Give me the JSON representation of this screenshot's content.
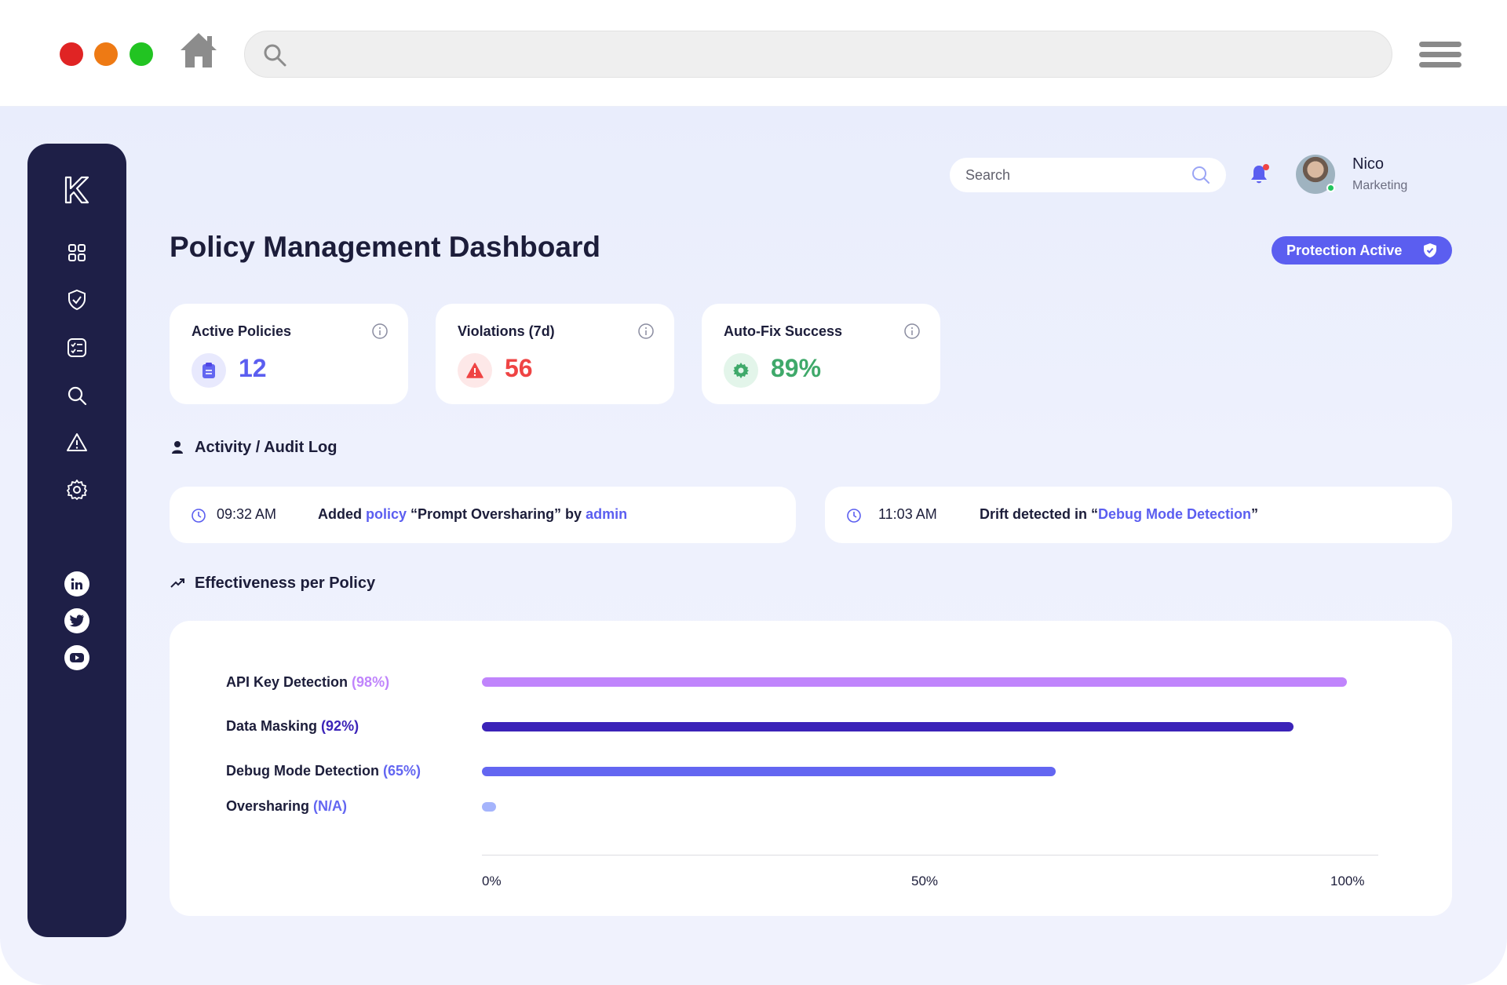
{
  "browser": {
    "url_placeholder": ""
  },
  "topbar": {
    "search_placeholder": "Search",
    "user_name": "Nico",
    "user_role": "Marketing"
  },
  "page": {
    "title": "Policy Management Dashboard",
    "status_badge": "Protection Active"
  },
  "stats": [
    {
      "title": "Active Policies",
      "value": "12",
      "icon": "clipboard-icon",
      "color": "#5b5ef0"
    },
    {
      "title": "Violations (7d)",
      "value": "56",
      "icon": "warning-icon",
      "color": "#ef4444"
    },
    {
      "title": "Auto-Fix Success",
      "value": "89%",
      "icon": "gear-icon",
      "color": "#3fa96a"
    }
  ],
  "activity": {
    "title": "Activity / Audit Log",
    "entries": [
      {
        "time": "09:32 AM",
        "pre": "Added ",
        "link1": "policy",
        "mid": " “Prompt Oversharing” by ",
        "link2": "admin",
        "post": ""
      },
      {
        "time": "11:03 AM",
        "pre": "Drift detected in “",
        "link1": "Debug Mode Detection",
        "mid": "”",
        "link2": "",
        "post": ""
      }
    ]
  },
  "effectiveness": {
    "title": "Effectiveness per Policy"
  },
  "chart_data": {
    "type": "bar",
    "orientation": "horizontal",
    "categories": [
      "API Key Detection",
      "Data Masking",
      "Debug Mode Detection",
      "Oversharing"
    ],
    "percent_labels": [
      "(98%)",
      "(92%)",
      "(65%)",
      "(N/A)"
    ],
    "values": [
      98,
      92,
      65,
      null
    ],
    "colors": [
      "#c084fc",
      "#3b23b8",
      "#6366f1",
      "#a5b4fc"
    ],
    "x_ticks": [
      "0%",
      "50%",
      "100%"
    ],
    "xlim": [
      0,
      100
    ]
  },
  "colors": {
    "sidebar": "#1e1f47",
    "accent": "#5b5ef0"
  }
}
